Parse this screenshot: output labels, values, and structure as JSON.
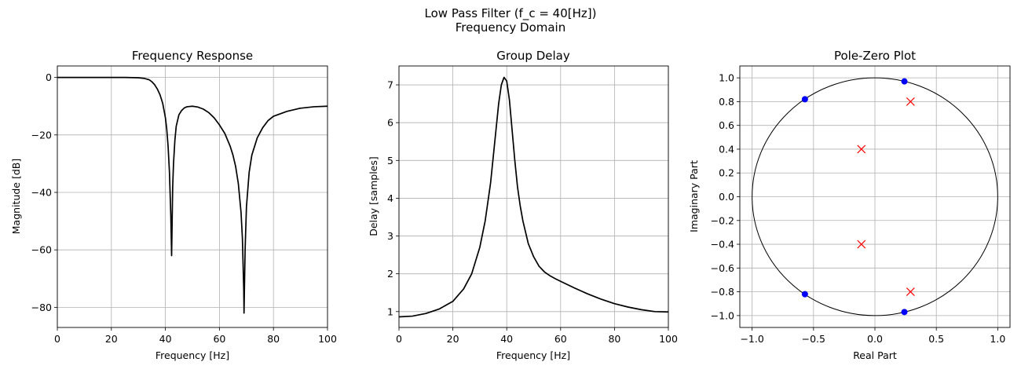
{
  "figure": {
    "suptitle_line1": "Low Pass Filter (f_c = 40[Hz])",
    "suptitle_line2": "Frequency Domain"
  },
  "colors": {
    "line": "#000000",
    "zero": "#0000ff",
    "pole": "#ff0000",
    "grid": "#b0b0b0"
  },
  "chart_data": [
    {
      "type": "line",
      "title": "Frequency Response",
      "xlabel": "Frequency [Hz]",
      "ylabel": "Magnitude [dB]",
      "xlim": [
        0,
        100
      ],
      "ylim": [
        -87,
        4
      ],
      "xticks": [
        0,
        20,
        40,
        60,
        80,
        100
      ],
      "yticks": [
        0,
        -20,
        -40,
        -60,
        -80
      ],
      "ytick_labels": [
        "0",
        "−20",
        "−40",
        "−60",
        "−80"
      ],
      "grid": true,
      "series": [
        {
          "x": [
            0,
            10,
            20,
            25,
            30,
            32,
            34,
            35,
            36,
            37,
            38,
            39,
            40,
            40.5,
            41,
            41.5,
            42,
            42.3,
            42.5,
            42.7,
            43,
            43.5,
            44,
            45,
            46,
            47,
            48,
            50,
            52,
            54,
            56,
            58,
            60,
            62,
            64,
            65,
            66,
            67,
            68,
            68.5,
            69,
            69.1,
            69.5,
            70,
            71,
            72,
            74,
            76,
            78,
            80,
            85,
            90,
            95,
            100
          ],
          "y": [
            0,
            0,
            0,
            0,
            -0.1,
            -0.3,
            -0.8,
            -1.5,
            -2.5,
            -4,
            -6,
            -9,
            -14,
            -18,
            -24,
            -33,
            -48,
            -62,
            -50,
            -38,
            -30,
            -22,
            -17,
            -13,
            -11.5,
            -10.6,
            -10.2,
            -10,
            -10.3,
            -11,
            -12.2,
            -14,
            -16.5,
            -19.5,
            -24,
            -27,
            -31,
            -37,
            -47,
            -56,
            -74,
            -82,
            -60,
            -45,
            -33,
            -27,
            -21,
            -17.5,
            -15,
            -13.5,
            -11.8,
            -10.7,
            -10.2,
            -10
          ]
        }
      ]
    },
    {
      "type": "line",
      "title": "Group Delay",
      "xlabel": "Frequency [Hz]",
      "ylabel": "Delay [samples]",
      "xlim": [
        0,
        100
      ],
      "ylim": [
        0.58,
        7.5
      ],
      "xticks": [
        0,
        20,
        40,
        60,
        80,
        100
      ],
      "yticks": [
        1,
        2,
        3,
        4,
        5,
        6,
        7
      ],
      "grid": true,
      "series": [
        {
          "x": [
            0,
            5,
            10,
            15,
            20,
            24,
            27,
            30,
            32,
            34,
            35,
            36,
            37,
            38,
            39,
            40,
            41,
            42,
            43,
            44,
            45,
            46,
            48,
            50,
            52,
            54,
            56,
            58,
            60,
            65,
            70,
            75,
            80,
            85,
            90,
            95,
            100
          ],
          "y": [
            0.86,
            0.88,
            0.95,
            1.07,
            1.27,
            1.6,
            2.0,
            2.7,
            3.4,
            4.4,
            5.1,
            5.8,
            6.5,
            7.0,
            7.2,
            7.1,
            6.6,
            5.8,
            5.0,
            4.3,
            3.8,
            3.4,
            2.8,
            2.45,
            2.2,
            2.05,
            1.95,
            1.87,
            1.8,
            1.63,
            1.47,
            1.33,
            1.21,
            1.12,
            1.05,
            1.0,
            0.99
          ]
        }
      ]
    },
    {
      "type": "scatter",
      "title": "Pole-Zero Plot",
      "xlabel": "Real Part",
      "ylabel": "Imaginary Part",
      "xlim": [
        -1.1,
        1.1
      ],
      "ylim": [
        -1.1,
        1.1
      ],
      "xticks": [
        -1.0,
        -0.5,
        0.0,
        0.5,
        1.0
      ],
      "xtick_labels": [
        "−1.0",
        "−0.5",
        "0.0",
        "0.5",
        "1.0"
      ],
      "yticks": [
        1.0,
        0.8,
        0.6,
        0.4,
        0.2,
        0.0,
        -0.2,
        -0.4,
        -0.6,
        -0.8,
        -1.0
      ],
      "ytick_labels": [
        "1.0",
        "0.8",
        "0.6",
        "0.4",
        "0.2",
        "0.0",
        "−0.2",
        "−0.4",
        "−0.6",
        "−0.8",
        "−1.0"
      ],
      "grid": true,
      "unit_circle": true,
      "zeros": [
        [
          0.24,
          0.97
        ],
        [
          -0.57,
          0.82
        ],
        [
          -0.57,
          -0.82
        ],
        [
          0.24,
          -0.97
        ]
      ],
      "poles": [
        [
          0.29,
          0.8
        ],
        [
          -0.11,
          0.4
        ],
        [
          -0.11,
          -0.4
        ],
        [
          0.29,
          -0.8
        ]
      ]
    }
  ]
}
